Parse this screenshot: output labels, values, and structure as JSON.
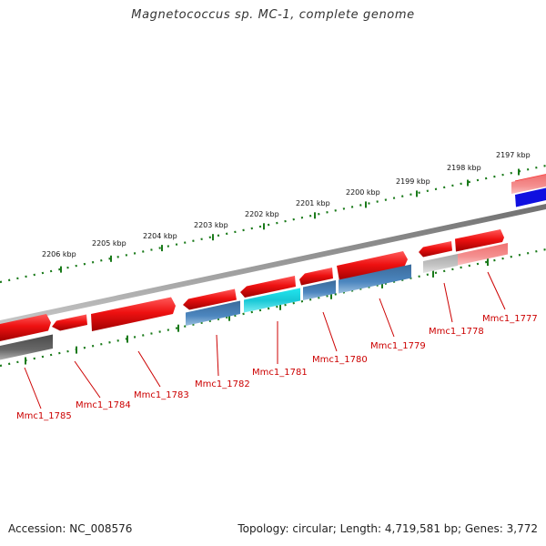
{
  "title": "Magnetococcus sp. MC-1, complete genome",
  "footer": {
    "accession": "Accession: NC_008576",
    "summary": "Topology: circular; Length: 4,719,581 bp; Genes: 3,772"
  },
  "colors": {
    "forward_cds": "#e41a1c",
    "reverse_cds": "#4a7fb5",
    "highlight_cds": "#2fd8e0",
    "pseudo_grey": "#9a9a9a",
    "pink_cds": "#f08080",
    "blue_cds": "#1010e0",
    "backbone": "#8a8a8a",
    "tick": "#1a7a1a",
    "label": "#cc0000"
  },
  "scale": {
    "ticks": [
      "2206 kbp",
      "2205 kbp",
      "2204 kbp",
      "2203 kbp",
      "2202 kbp",
      "2201 kbp",
      "2200 kbp",
      "2199 kbp",
      "2198 kbp",
      "2197 kbp"
    ]
  },
  "genes": [
    {
      "label": "Mmc1_1785",
      "strand": "minus",
      "type": "grey"
    },
    {
      "label": "Mmc1_1784",
      "strand": "plus",
      "type": "red"
    },
    {
      "label": "Mmc1_1783",
      "strand": "plus",
      "type": "red"
    },
    {
      "label": "Mmc1_1782",
      "strand": "minus",
      "type": "blue"
    },
    {
      "label": "Mmc1_1781",
      "strand": "minus",
      "type": "cyan"
    },
    {
      "label": "Mmc1_1780",
      "strand": "minus",
      "type": "blue"
    },
    {
      "label": "Mmc1_1779",
      "strand": "minus",
      "type": "blue"
    },
    {
      "label": "Mmc1_1778",
      "strand": "minus",
      "type": "grey"
    },
    {
      "label": "Mmc1_1777",
      "strand": "minus",
      "type": "pink"
    }
  ]
}
